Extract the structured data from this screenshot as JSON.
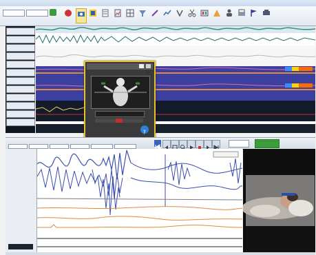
{
  "window": {
    "title": "",
    "mode_selector": "",
    "study_selector": ""
  },
  "toolbar": {
    "buttons": [
      {
        "icon": "record-icon",
        "label": ""
      },
      {
        "icon": "camera-icon",
        "label": ""
      },
      {
        "icon": "montage-icon",
        "label": ""
      },
      {
        "icon": "document-icon",
        "label": ""
      },
      {
        "icon": "report-icon",
        "label": ""
      },
      {
        "icon": "grid-icon",
        "label": ""
      },
      {
        "icon": "filter-icon",
        "label": ""
      },
      {
        "icon": "marker-icon",
        "label": ""
      },
      {
        "icon": "chart-icon",
        "label": ""
      },
      {
        "icon": "impedance-icon",
        "label": ""
      },
      {
        "icon": "scissors-icon",
        "label": ""
      },
      {
        "icon": "events-icon",
        "label": ""
      },
      {
        "icon": "calibration-icon",
        "label": ""
      },
      {
        "icon": "patient-icon",
        "label": ""
      },
      {
        "icon": "print-icon",
        "label": ""
      },
      {
        "icon": "flag-icon",
        "label": ""
      },
      {
        "icon": "tools-icon",
        "label": ""
      }
    ]
  },
  "top_panel": {
    "channels": [
      "",
      "",
      "",
      "",
      "",
      "",
      "",
      "",
      "",
      "",
      "",
      ""
    ],
    "time_ticks": [
      "",
      "",
      "",
      "",
      "",
      "",
      ""
    ]
  },
  "popup": {
    "title": "",
    "subtitle": "",
    "value": "",
    "footer": ""
  },
  "nav_bar": {
    "labels": [
      "",
      "",
      "",
      "",
      "",
      ""
    ],
    "counter": "",
    "go_label": ""
  },
  "bottom_panel": {
    "channels": [
      "",
      "",
      "",
      "",
      "",
      "",
      "",
      "",
      "",
      ""
    ],
    "time_label": ""
  },
  "status_bar": {
    "items": [
      "",
      "",
      "",
      "",
      "",
      ""
    ]
  },
  "colors": {
    "accent": "#e7c12b",
    "wave_blue": "#3a4fb0",
    "wave_orange": "#e08a3a",
    "wave_teal": "#2d8f8a"
  }
}
